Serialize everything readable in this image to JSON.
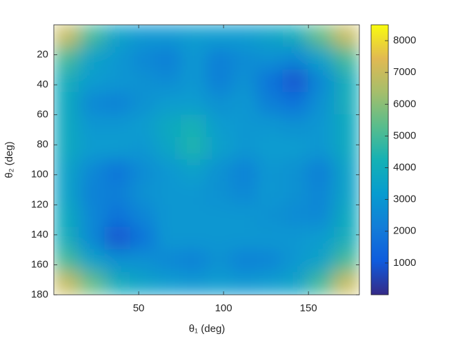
{
  "chart_data": {
    "type": "heatmap",
    "xlabel": "θ₁ (deg)",
    "ylabel": "θ₂ (deg)",
    "x": [
      7.5,
      22.5,
      37.5,
      52.5,
      67.5,
      82.5,
      97.5,
      112.5,
      127.5,
      142.5,
      157.5,
      172.5
    ],
    "y": [
      7.5,
      22.5,
      37.5,
      52.5,
      67.5,
      82.5,
      97.5,
      112.5,
      127.5,
      142.5,
      157.5,
      172.5
    ],
    "values": [
      [
        7000,
        5000,
        3500,
        3000,
        3000,
        3200,
        3200,
        3200,
        3500,
        4000,
        5500,
        7000
      ],
      [
        5000,
        3500,
        3000,
        2500,
        2200,
        3000,
        2200,
        2600,
        2800,
        2500,
        3500,
        5000
      ],
      [
        4000,
        3200,
        3000,
        2800,
        2600,
        3000,
        2200,
        2800,
        1800,
        900,
        2500,
        4000
      ],
      [
        3800,
        2500,
        2300,
        2800,
        3200,
        3200,
        2800,
        3000,
        2200,
        1800,
        2800,
        4000
      ],
      [
        3800,
        3000,
        3000,
        3200,
        3800,
        4200,
        3200,
        3000,
        3000,
        2800,
        3000,
        3800
      ],
      [
        3800,
        3200,
        3200,
        3000,
        3600,
        4400,
        3400,
        3000,
        3200,
        3200,
        3000,
        3800
      ],
      [
        3500,
        2500,
        1800,
        2600,
        3000,
        3400,
        2800,
        2300,
        3000,
        2800,
        2200,
        3500
      ],
      [
        3500,
        2300,
        2200,
        2800,
        3000,
        3000,
        2800,
        2500,
        3000,
        2800,
        2400,
        3500
      ],
      [
        3800,
        2500,
        1800,
        2400,
        3000,
        3000,
        3000,
        3000,
        2800,
        2600,
        2500,
        3800
      ],
      [
        4000,
        2500,
        900,
        1800,
        3000,
        3000,
        3000,
        3000,
        3000,
        3000,
        3200,
        4000
      ],
      [
        5000,
        3500,
        2800,
        2800,
        2500,
        2300,
        2800,
        2300,
        2400,
        3000,
        3500,
        5000
      ],
      [
        7000,
        5500,
        4000,
        3500,
        3200,
        3000,
        3200,
        3000,
        3200,
        3500,
        5000,
        7000
      ]
    ],
    "xlim": [
      0,
      180
    ],
    "ylim": [
      0,
      180
    ],
    "y_reversed": true,
    "xticks": [
      50,
      100,
      150
    ],
    "yticks": [
      20,
      40,
      60,
      80,
      100,
      120,
      140,
      160,
      180
    ],
    "colormap": "parula",
    "clim": [
      0,
      8500
    ],
    "cticks": [
      1000,
      2000,
      3000,
      4000,
      5000,
      6000,
      7000,
      8000
    ]
  }
}
